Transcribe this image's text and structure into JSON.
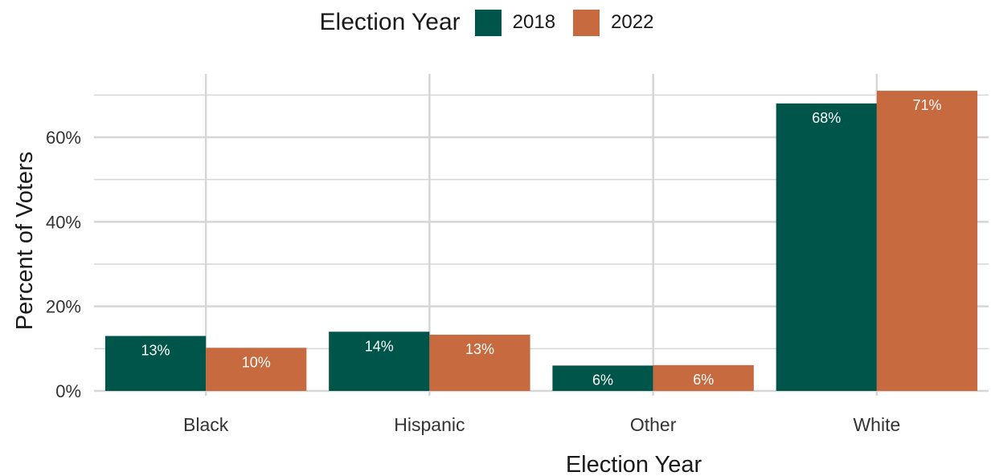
{
  "chart_data": {
    "type": "bar",
    "categories": [
      "Black",
      "Hispanic",
      "Other",
      "White"
    ],
    "series": [
      {
        "name": "2018",
        "values": [
          13,
          14,
          6,
          68
        ],
        "labels": [
          "13%",
          "14%",
          "6%",
          "68%"
        ],
        "color": "#00554A"
      },
      {
        "name": "2022",
        "values": [
          10.2,
          13.3,
          6.1,
          71
        ],
        "labels": [
          "10%",
          "13%",
          "6%",
          "71%"
        ],
        "color": "#C76A3F"
      }
    ],
    "legend_title": "Election Year",
    "legend_position": "top",
    "xlabel": "Election Year",
    "ylabel": "Percent of Voters",
    "ylim": [
      0,
      75
    ],
    "yticks": [
      0,
      20,
      40,
      60
    ],
    "ytick_labels": [
      "0%",
      "20%",
      "40%",
      "60%"
    ],
    "grid": true
  }
}
